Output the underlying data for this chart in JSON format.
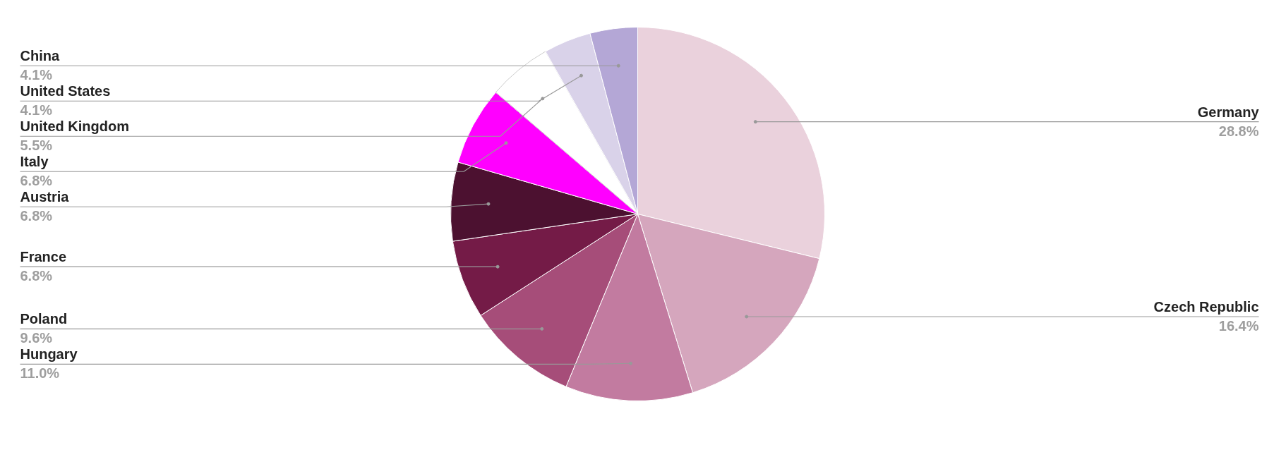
{
  "chart_data": {
    "type": "pie",
    "categories": [
      "Germany",
      "Czech Republic",
      "Hungary",
      "Poland",
      "France",
      "Austria",
      "Italy",
      "United Kingdom",
      "United States",
      "China"
    ],
    "values": [
      28.8,
      16.4,
      11.0,
      9.6,
      6.8,
      6.8,
      6.8,
      5.5,
      4.1,
      4.1
    ],
    "value_labels": [
      "28.8%",
      "16.4%",
      "11.0%",
      "9.6%",
      "6.8%",
      "6.8%",
      "6.8%",
      "5.5%",
      "4.1%",
      "4.1%"
    ],
    "colors": [
      "#ead1dc",
      "#d5a6bd",
      "#c27ba0",
      "#a64d79",
      "#741b47",
      "#4c1130",
      "#ff00ff",
      "#ffffff",
      "#d9d2e9",
      "#b4a7d6"
    ]
  }
}
